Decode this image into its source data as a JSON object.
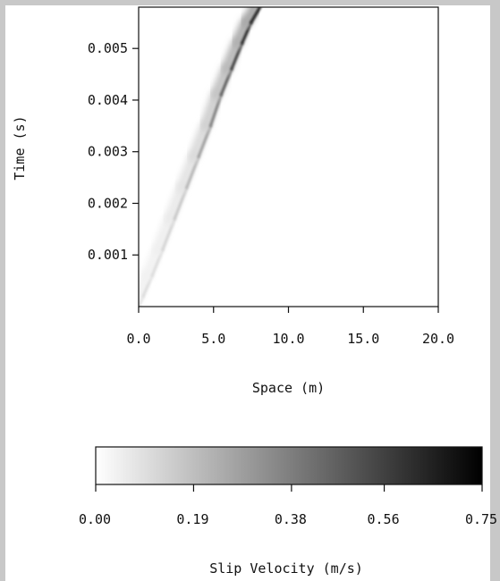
{
  "chart_data": [
    {
      "type": "heatmap",
      "title": "",
      "xlabel": "Space (m)",
      "ylabel": "Time (s)",
      "xlim": [
        0,
        20
      ],
      "ylim": [
        0,
        0.0058
      ],
      "x_ticks": [
        {
          "value": 0,
          "label": "0.0"
        },
        {
          "value": 5,
          "label": "5.0"
        },
        {
          "value": 10,
          "label": "10.0"
        },
        {
          "value": 15,
          "label": "15.0"
        },
        {
          "value": 20,
          "label": "20.0"
        }
      ],
      "y_ticks": [
        {
          "value": 0.001,
          "label": "0.001"
        },
        {
          "value": 0.002,
          "label": "0.002"
        },
        {
          "value": 0.003,
          "label": "0.003"
        },
        {
          "value": 0.004,
          "label": "0.004"
        },
        {
          "value": 0.005,
          "label": "0.005"
        }
      ],
      "rupture_front": {
        "x": [
          0.0,
          0.3,
          0.9,
          1.6,
          2.4,
          3.2,
          4.0,
          4.8,
          5.5,
          6.2,
          6.9,
          7.5,
          8.1
        ],
        "t": [
          0.0,
          0.0002,
          0.0006,
          0.0011,
          0.0017,
          0.0023,
          0.0029,
          0.0035,
          0.0041,
          0.0046,
          0.0051,
          0.0055,
          0.0058
        ],
        "slip_velocity": [
          0.08,
          0.12,
          0.1,
          0.12,
          0.15,
          0.2,
          0.26,
          0.34,
          0.45,
          0.55,
          0.63,
          0.7,
          0.75
        ]
      }
    },
    {
      "type": "colorbar",
      "label": "Slip Velocity (m/s)",
      "range": [
        0,
        0.75
      ],
      "colormap": [
        "#ffffff",
        "#000000"
      ],
      "ticks": [
        {
          "value": 0.0,
          "label": "0.00"
        },
        {
          "value": 0.19,
          "label": "0.19"
        },
        {
          "value": 0.38,
          "label": "0.38"
        },
        {
          "value": 0.56,
          "label": "0.56"
        },
        {
          "value": 0.75,
          "label": "0.75"
        }
      ]
    }
  ],
  "colors": {
    "frame": "#c8c8c8",
    "axis": "#111111",
    "background": "#ffffff"
  }
}
